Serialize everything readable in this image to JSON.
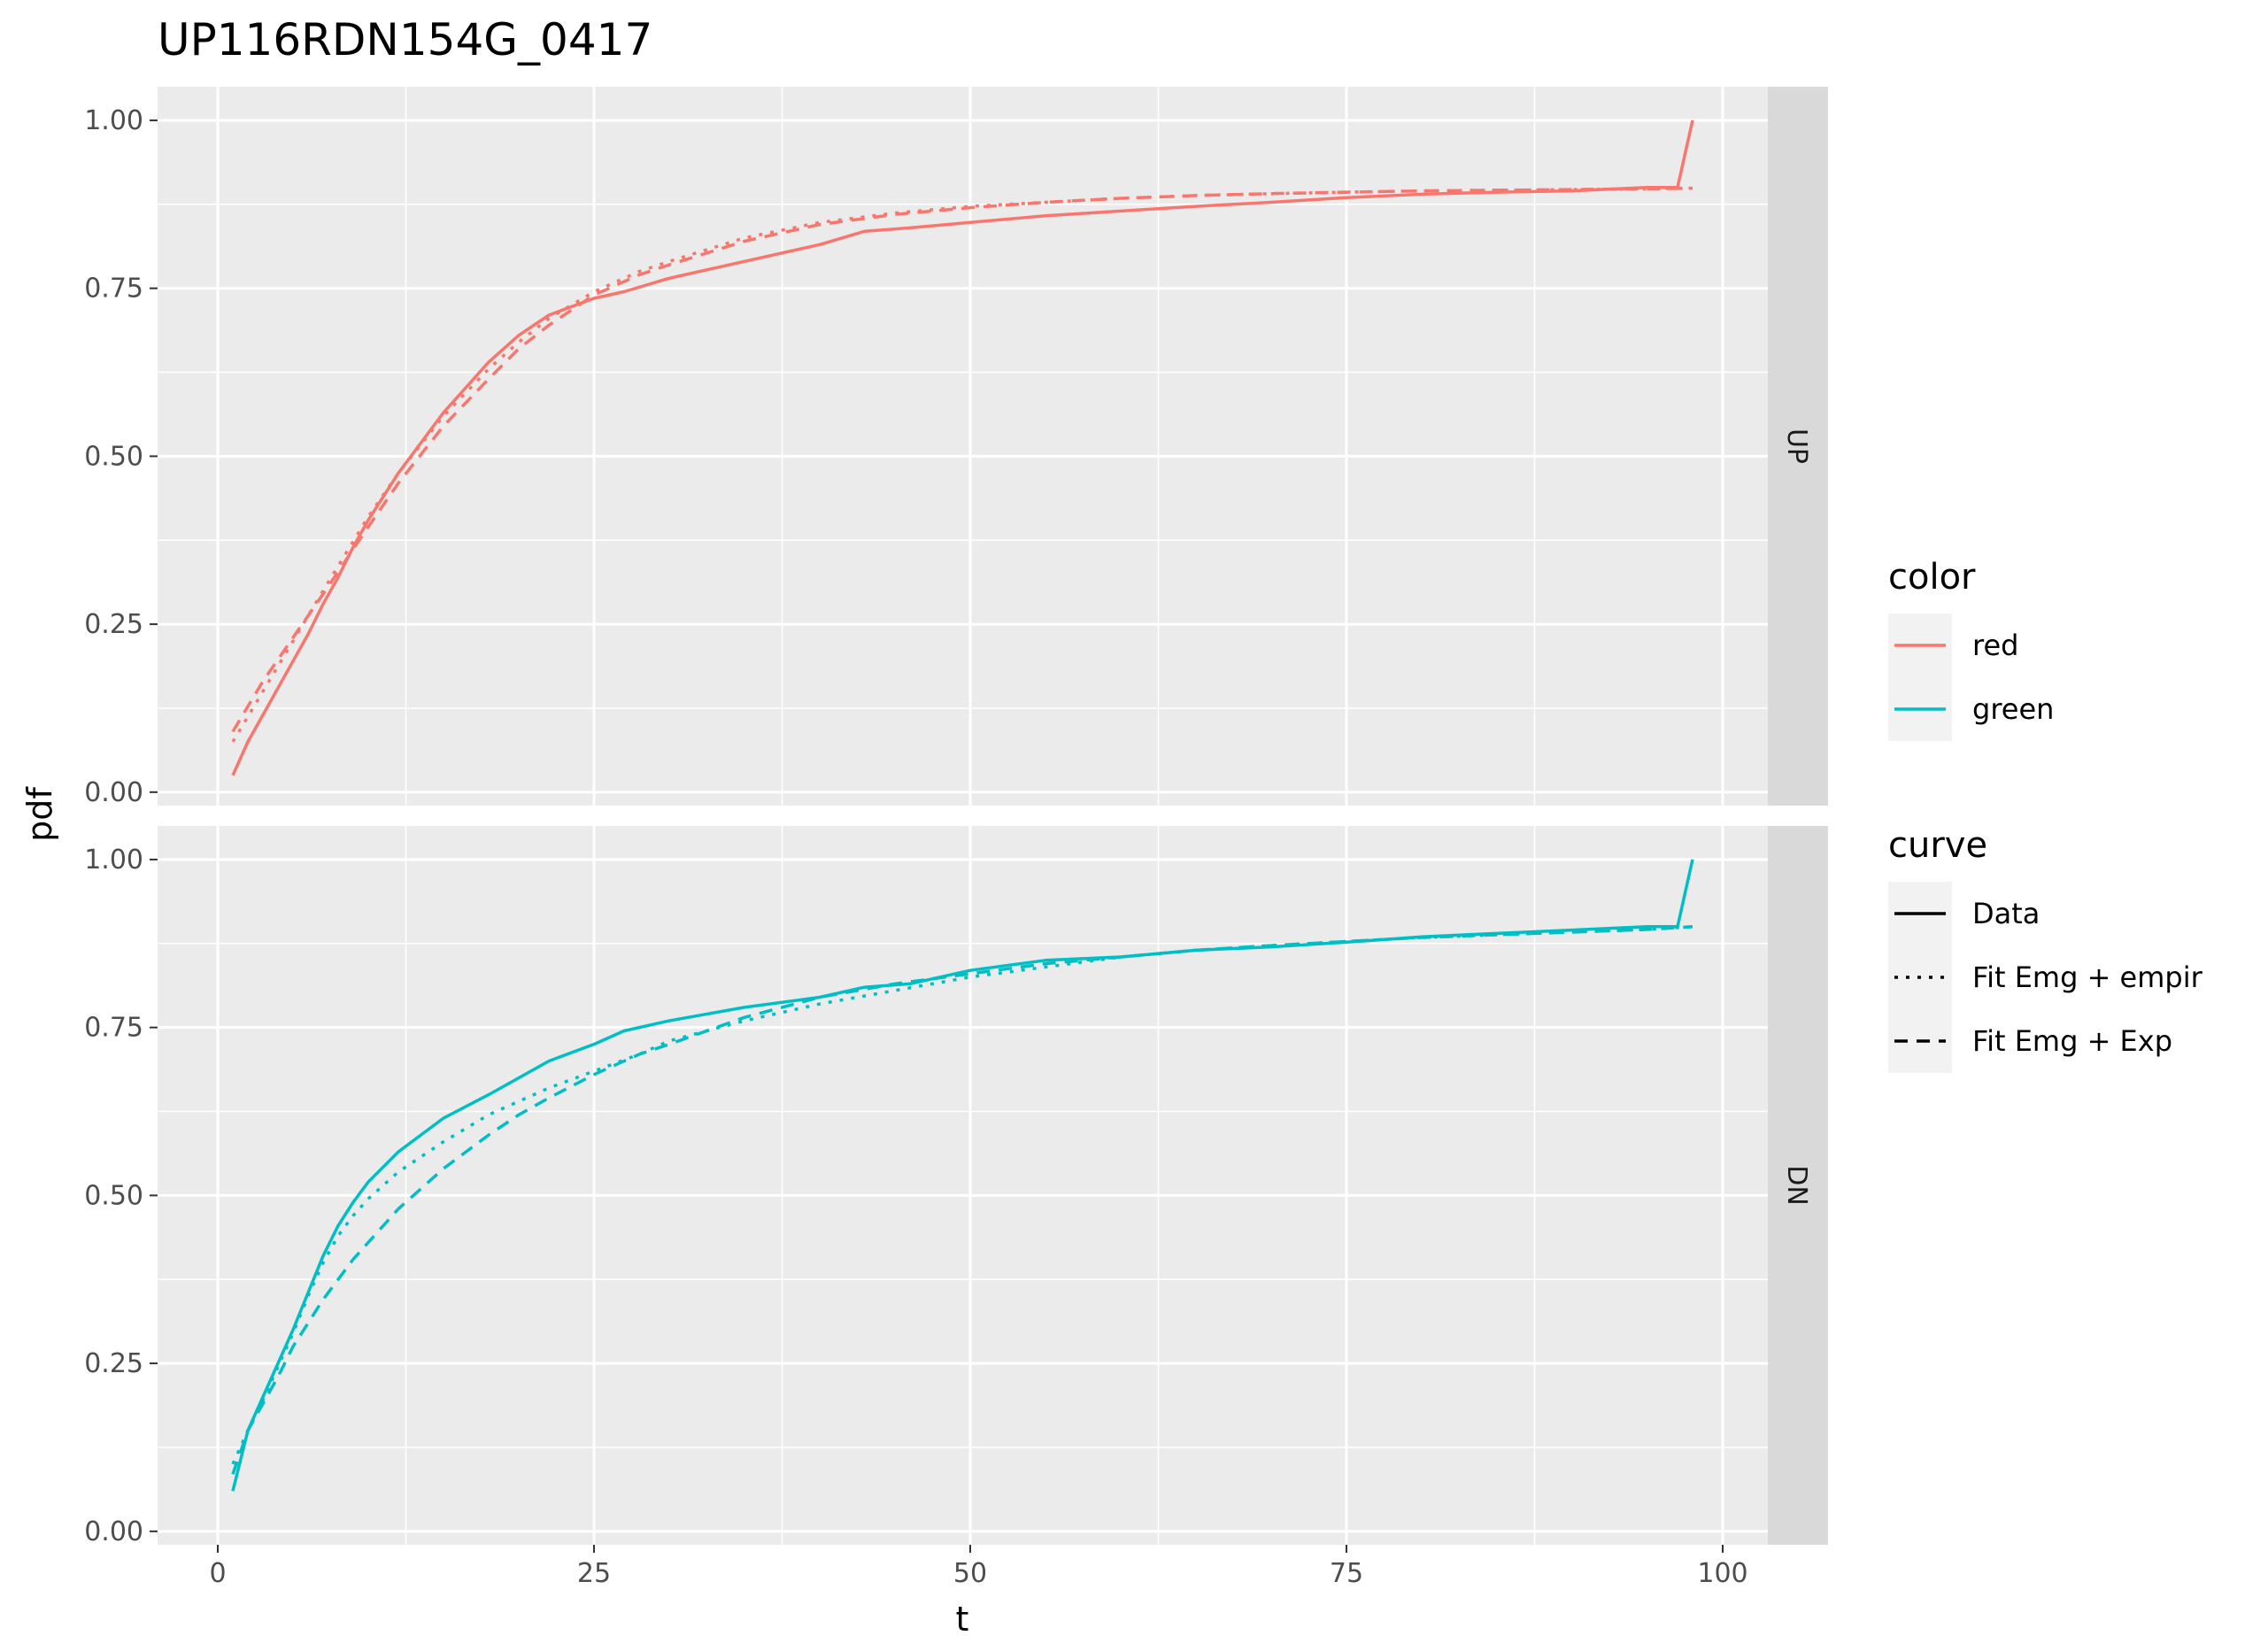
{
  "chart_data": {
    "type": "line",
    "title": "UP116RDN154G_0417",
    "xlabel": "t",
    "ylabel": "pdf",
    "xlim": [
      -4,
      103
    ],
    "ylim": [
      -0.02,
      1.05
    ],
    "x_ticks": [
      0,
      25,
      50,
      75,
      100
    ],
    "x_tick_labels": [
      "0",
      "25",
      "50",
      "75",
      "100"
    ],
    "y_ticks": [
      0,
      0.25,
      0.5,
      0.75,
      1.0
    ],
    "y_tick_labels": [
      "0.00",
      "0.25",
      "0.50",
      "0.75",
      "1.00"
    ],
    "grid": true,
    "legend_position": "right",
    "colors": {
      "red": "#F8766D",
      "green": "#00BFC4",
      "panel_bg": "#EBEBEB",
      "strip_bg": "#D9D9D9",
      "grid": "#FFFFFF"
    },
    "legend": {
      "color": {
        "title": "color",
        "items": [
          {
            "label": "red",
            "color": "#F8766D"
          },
          {
            "label": "green",
            "color": "#00BFC4"
          }
        ]
      },
      "curve": {
        "title": "curve",
        "items": [
          {
            "label": "Data",
            "style": "solid"
          },
          {
            "label": "Fit Emg + empir",
            "style": "dotted"
          },
          {
            "label": "Fit Emg + Exp",
            "style": "dashed"
          }
        ]
      }
    },
    "panels": [
      {
        "strip": "UP",
        "color": "#F8766D",
        "series": [
          {
            "name": "Data",
            "style": "solid",
            "x": [
              1,
              2,
              3,
              4,
              5,
              6,
              7,
              8,
              9,
              10,
              12,
              15,
              18,
              20,
              22,
              25,
              27,
              30,
              35,
              40,
              43,
              46,
              50,
              55,
              60,
              65,
              70,
              75,
              80,
              85,
              90,
              95,
              97,
              98
            ],
            "y": [
              0.025,
              0.075,
              0.115,
              0.155,
              0.195,
              0.235,
              0.28,
              0.32,
              0.365,
              0.405,
              0.475,
              0.565,
              0.64,
              0.68,
              0.71,
              0.735,
              0.745,
              0.765,
              0.79,
              0.815,
              0.835,
              0.84,
              0.848,
              0.858,
              0.865,
              0.872,
              0.878,
              0.885,
              0.89,
              0.893,
              0.895,
              0.9,
              0.9,
              1.0
            ]
          },
          {
            "name": "Fit Emg + empir",
            "style": "dotted",
            "x": [
              1,
              3,
              5,
              7,
              10,
              12,
              15,
              18,
              20,
              22,
              25,
              28,
              30,
              35,
              40,
              45,
              50,
              55,
              60,
              65,
              70,
              75,
              80,
              85,
              90,
              95,
              98
            ],
            "y": [
              0.075,
              0.15,
              0.225,
              0.3,
              0.41,
              0.475,
              0.56,
              0.63,
              0.67,
              0.705,
              0.745,
              0.775,
              0.79,
              0.825,
              0.848,
              0.862,
              0.872,
              0.878,
              0.884,
              0.888,
              0.891,
              0.893,
              0.895,
              0.896,
              0.897,
              0.898,
              0.899
            ]
          },
          {
            "name": "Fit Emg + Exp",
            "style": "dashed",
            "x": [
              1,
              3,
              5,
              7,
              10,
              12,
              15,
              18,
              20,
              22,
              25,
              28,
              30,
              35,
              40,
              45,
              50,
              55,
              60,
              65,
              70,
              75,
              80,
              85,
              90,
              95,
              98
            ],
            "y": [
              0.09,
              0.165,
              0.23,
              0.295,
              0.395,
              0.46,
              0.545,
              0.615,
              0.66,
              0.695,
              0.74,
              0.77,
              0.785,
              0.82,
              0.845,
              0.86,
              0.87,
              0.878,
              0.884,
              0.888,
              0.891,
              0.893,
              0.895,
              0.896,
              0.897,
              0.898,
              0.899
            ]
          }
        ]
      },
      {
        "strip": "DN",
        "color": "#00BFC4",
        "series": [
          {
            "name": "Data",
            "style": "solid",
            "x": [
              1,
              2,
              3,
              4,
              5,
              6,
              7,
              8,
              9,
              10,
              12,
              15,
              18,
              20,
              22,
              25,
              27,
              30,
              35,
              40,
              43,
              46,
              50,
              55,
              60,
              65,
              70,
              75,
              80,
              85,
              90,
              95,
              97,
              98
            ],
            "y": [
              0.06,
              0.15,
              0.2,
              0.25,
              0.3,
              0.355,
              0.41,
              0.455,
              0.49,
              0.52,
              0.565,
              0.615,
              0.65,
              0.675,
              0.7,
              0.725,
              0.745,
              0.76,
              0.78,
              0.795,
              0.81,
              0.815,
              0.835,
              0.85,
              0.855,
              0.865,
              0.87,
              0.877,
              0.885,
              0.89,
              0.895,
              0.9,
              0.9,
              1.0
            ]
          },
          {
            "name": "Fit Emg + empir",
            "style": "dotted",
            "x": [
              1,
              2,
              3,
              4,
              5,
              6,
              7,
              8,
              9,
              10,
              12,
              15,
              18,
              20,
              22,
              25,
              28,
              30,
              35,
              40,
              45,
              50,
              55,
              60,
              65,
              70,
              75,
              80,
              85,
              90,
              95,
              98
            ],
            "y": [
              0.1,
              0.15,
              0.195,
              0.245,
              0.295,
              0.35,
              0.4,
              0.44,
              0.47,
              0.495,
              0.535,
              0.58,
              0.62,
              0.64,
              0.66,
              0.685,
              0.71,
              0.73,
              0.76,
              0.785,
              0.805,
              0.825,
              0.84,
              0.855,
              0.865,
              0.872,
              0.878,
              0.884,
              0.888,
              0.892,
              0.896,
              0.9
            ]
          },
          {
            "name": "Fit Emg + Exp",
            "style": "dashed",
            "x": [
              1,
              2,
              3,
              4,
              5,
              6,
              7,
              8,
              9,
              10,
              12,
              15,
              18,
              20,
              22,
              25,
              28,
              30,
              35,
              40,
              45,
              50,
              55,
              60,
              65,
              70,
              75,
              80,
              85,
              90,
              95,
              98
            ],
            "y": [
              0.085,
              0.15,
              0.19,
              0.23,
              0.275,
              0.31,
              0.345,
              0.375,
              0.405,
              0.43,
              0.48,
              0.54,
              0.59,
              0.62,
              0.645,
              0.68,
              0.71,
              0.725,
              0.765,
              0.795,
              0.815,
              0.83,
              0.845,
              0.855,
              0.865,
              0.872,
              0.878,
              0.884,
              0.888,
              0.892,
              0.896,
              0.9
            ]
          }
        ]
      }
    ]
  }
}
